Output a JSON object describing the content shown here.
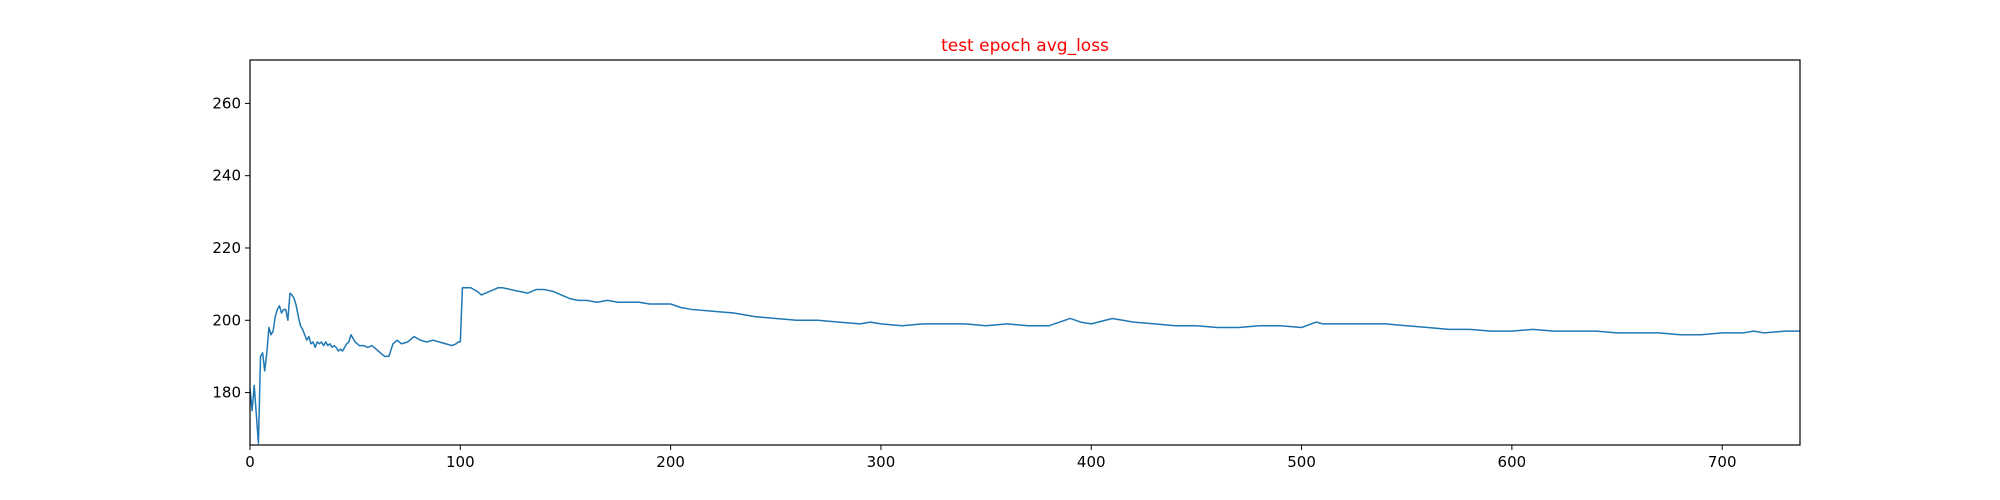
{
  "chart_data": {
    "type": "line",
    "title": "test epoch avg_loss",
    "title_color": "#ff0000",
    "line_color": "#1f77b4",
    "xlabel": "",
    "ylabel": "",
    "xlim": [
      0,
      737
    ],
    "ylim": [
      165.5,
      272
    ],
    "x_ticks": [
      0,
      100,
      200,
      300,
      400,
      500,
      600,
      700
    ],
    "y_ticks": [
      180,
      200,
      220,
      240,
      260
    ],
    "grid": false,
    "legend": "none",
    "series": [
      {
        "x": [
          0,
          1,
          2,
          3,
          4,
          5,
          6,
          7,
          8,
          9,
          10,
          11,
          12,
          13,
          14,
          15,
          16,
          17,
          18,
          19,
          20,
          21,
          22,
          23,
          24,
          25,
          26,
          27,
          28,
          29,
          30,
          31,
          32,
          33,
          34,
          35,
          36,
          37,
          38,
          39,
          40,
          41,
          42,
          43,
          44,
          45,
          46,
          47,
          48,
          49,
          50,
          52,
          54,
          56,
          58,
          60,
          62,
          64,
          66,
          68,
          70,
          72,
          75,
          78,
          81,
          84,
          87,
          90,
          93,
          96,
          98,
          99,
          100,
          101,
          102,
          105,
          108,
          110,
          112,
          114,
          116,
          118,
          120,
          124,
          128,
          132,
          136,
          140,
          144,
          148,
          152,
          156,
          160,
          165,
          170,
          175,
          180,
          185,
          190,
          195,
          200,
          205,
          210,
          220,
          230,
          240,
          250,
          260,
          270,
          280,
          290,
          295,
          300,
          310,
          320,
          330,
          340,
          350,
          360,
          370,
          380,
          390,
          395,
          400,
          410,
          415,
          420,
          430,
          440,
          450,
          460,
          470,
          480,
          490,
          500,
          507,
          510,
          520,
          530,
          540,
          550,
          560,
          570,
          580,
          590,
          600,
          610,
          620,
          630,
          640,
          650,
          660,
          670,
          680,
          690,
          700,
          710,
          715,
          720,
          730,
          737
        ],
        "y": [
          181,
          175,
          182,
          174,
          166,
          190,
          191,
          186,
          191,
          198,
          196,
          197,
          201,
          203,
          204,
          202,
          203,
          203,
          200,
          207.5,
          207,
          206,
          204,
          201,
          198.5,
          197.5,
          196,
          194.5,
          195.5,
          193.5,
          194,
          192.5,
          194,
          193.5,
          194,
          193,
          194,
          193,
          193.5,
          192.5,
          193,
          192.5,
          191.5,
          192,
          191.5,
          192.5,
          193.5,
          194,
          196,
          195,
          194,
          193,
          193,
          192.5,
          193,
          192,
          191,
          190,
          190,
          193.5,
          194.5,
          193.5,
          194,
          195.5,
          194.5,
          194,
          194.5,
          194,
          193.5,
          193,
          193.5,
          194,
          194,
          209,
          209,
          209,
          208,
          207,
          207.5,
          208,
          208.5,
          209,
          209,
          208.5,
          208,
          207.5,
          208.5,
          208.5,
          208,
          207,
          206,
          205.5,
          205.5,
          205,
          205.5,
          205,
          205,
          205,
          204.5,
          204.5,
          204.5,
          203.5,
          203,
          202.5,
          202,
          201,
          200.5,
          200,
          200,
          199.5,
          199,
          199.5,
          199,
          198.5,
          199,
          199,
          199,
          198.5,
          199,
          198.5,
          198.5,
          200.5,
          199.5,
          199,
          200.5,
          200,
          199.5,
          199,
          198.5,
          198.5,
          198,
          198,
          198.5,
          198.5,
          198,
          199.5,
          199,
          199,
          199,
          199,
          198.5,
          198,
          197.5,
          197.5,
          197,
          197,
          197.5,
          197,
          197,
          197,
          196.5,
          196.5,
          196.5,
          196,
          196,
          196.5,
          196.5,
          197,
          196.5,
          197,
          197
        ]
      }
    ]
  }
}
